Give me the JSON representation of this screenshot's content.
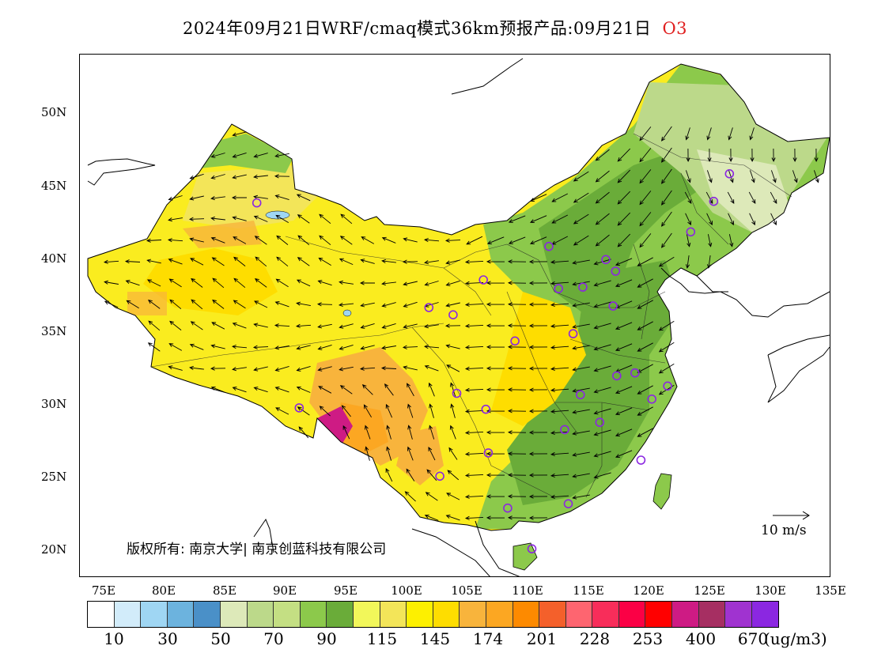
{
  "title": {
    "main": "2024年09月21日WRF/cmaq模式36km预报产品:09月21日",
    "species": "O3"
  },
  "axes": {
    "lat_labels": [
      "50N",
      "45N",
      "40N",
      "35N",
      "30N",
      "25N",
      "20N"
    ],
    "lon_labels": [
      "75E",
      "80E",
      "85E",
      "90E",
      "95E",
      "100E",
      "105E",
      "110E",
      "115E",
      "120E",
      "125E",
      "130E",
      "135E"
    ],
    "lon_range": [
      73,
      135
    ],
    "lat_range": [
      18,
      54
    ]
  },
  "legend": {
    "colors": [
      "#ffffff",
      "#d2ecfa",
      "#9fd6f3",
      "#6cb3de",
      "#4a90c8",
      "#dde9b9",
      "#bcd98a",
      "#c4df83",
      "#8cc94b",
      "#6aac39",
      "#f2f75a",
      "#f3e559",
      "#fdf000",
      "#fedd00",
      "#f8b43c",
      "#fca722",
      "#fd8a00",
      "#f4602b",
      "#fe6570",
      "#f82d5a",
      "#fb0045",
      "#ff0000",
      "#ce1b84",
      "#a62f62",
      "#a033d0",
      "#8b27e1"
    ],
    "labels": [
      "10",
      "30",
      "50",
      "70",
      "90",
      "115",
      "145",
      "174",
      "201",
      "228",
      "253",
      "400",
      "670"
    ],
    "unit": "(ug/m3)"
  },
  "copyright": "版权所有: 南京大学| 南京创蓝科技有限公司",
  "wind_reference": "10 m/s",
  "map_colors": {
    "ocean": "#ffffff",
    "low_green": "#bcd98a",
    "mid_green": "#8cc94b",
    "dark_green": "#6aac39",
    "yellow": "#fdf000",
    "orange": "#fca722",
    "magenta": "#ce1b84",
    "station": "#8b27e1",
    "lake": "#9fd6f3"
  },
  "stations": [
    {
      "lon": 87.6,
      "lat": 43.8
    },
    {
      "lon": 91.1,
      "lat": 29.7
    },
    {
      "lon": 101.8,
      "lat": 36.6
    },
    {
      "lon": 103.8,
      "lat": 36.1
    },
    {
      "lon": 106.3,
      "lat": 38.5
    },
    {
      "lon": 104.1,
      "lat": 30.7
    },
    {
      "lon": 106.5,
      "lat": 29.6
    },
    {
      "lon": 106.7,
      "lat": 26.6
    },
    {
      "lon": 102.7,
      "lat": 25.0
    },
    {
      "lon": 108.3,
      "lat": 22.8
    },
    {
      "lon": 110.3,
      "lat": 20.0
    },
    {
      "lon": 108.9,
      "lat": 34.3
    },
    {
      "lon": 111.7,
      "lat": 40.8
    },
    {
      "lon": 112.5,
      "lat": 37.9
    },
    {
      "lon": 114.5,
      "lat": 38.0
    },
    {
      "lon": 116.4,
      "lat": 39.9
    },
    {
      "lon": 117.2,
      "lat": 39.1
    },
    {
      "lon": 117.0,
      "lat": 36.7
    },
    {
      "lon": 113.7,
      "lat": 34.8
    },
    {
      "lon": 114.3,
      "lat": 30.6
    },
    {
      "lon": 113.0,
      "lat": 28.2
    },
    {
      "lon": 115.9,
      "lat": 28.7
    },
    {
      "lon": 117.3,
      "lat": 31.9
    },
    {
      "lon": 118.8,
      "lat": 32.1
    },
    {
      "lon": 120.2,
      "lat": 30.3
    },
    {
      "lon": 121.5,
      "lat": 31.2
    },
    {
      "lon": 119.3,
      "lat": 26.1
    },
    {
      "lon": 113.3,
      "lat": 23.1
    },
    {
      "lon": 123.4,
      "lat": 41.8
    },
    {
      "lon": 125.3,
      "lat": 43.9
    },
    {
      "lon": 126.6,
      "lat": 45.8
    }
  ]
}
